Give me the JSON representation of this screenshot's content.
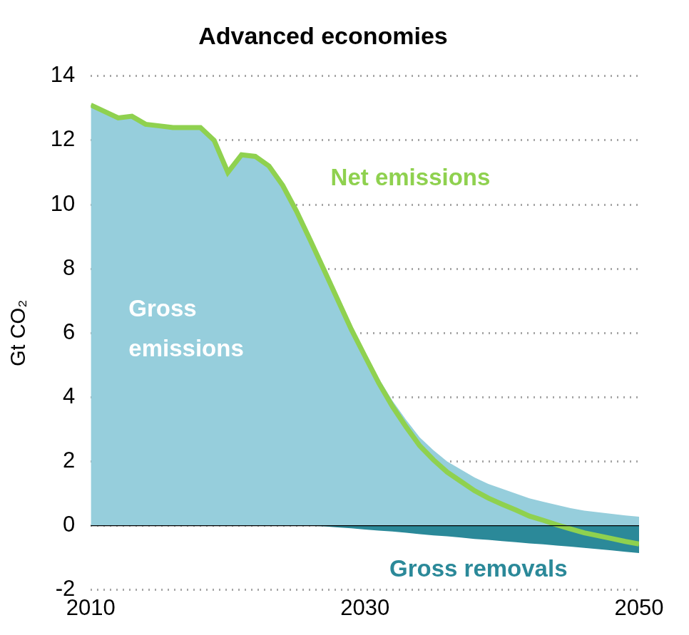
{
  "chart_data": {
    "type": "area",
    "title": "Advanced economies",
    "y_label": "Gt CO₂",
    "x": [
      2010,
      2011,
      2012,
      2013,
      2014,
      2015,
      2016,
      2017,
      2018,
      2019,
      2020,
      2021,
      2022,
      2023,
      2024,
      2025,
      2026,
      2027,
      2028,
      2029,
      2030,
      2031,
      2032,
      2033,
      2034,
      2035,
      2036,
      2037,
      2038,
      2039,
      2040,
      2041,
      2042,
      2043,
      2044,
      2045,
      2046,
      2047,
      2048,
      2049,
      2050
    ],
    "series": [
      {
        "name": "Gross emissions",
        "type": "area",
        "color": "#96cedc",
        "values": [
          13.1,
          12.9,
          12.7,
          12.75,
          12.5,
          12.45,
          12.4,
          12.4,
          12.4,
          12.0,
          11.0,
          11.55,
          11.5,
          11.2,
          10.6,
          9.8,
          8.9,
          8.0,
          7.1,
          6.2,
          5.4,
          4.6,
          3.9,
          3.3,
          2.75,
          2.35,
          2.0,
          1.75,
          1.5,
          1.3,
          1.15,
          1.0,
          0.85,
          0.75,
          0.65,
          0.55,
          0.47,
          0.42,
          0.37,
          0.32,
          0.28
        ]
      },
      {
        "name": "Gross removals",
        "type": "area",
        "color": "#2b8999",
        "values": [
          0,
          0,
          0,
          0,
          0,
          0,
          0,
          0,
          0,
          0,
          0,
          0,
          0,
          0,
          0,
          0,
          0,
          -0.02,
          -0.05,
          -0.08,
          -0.12,
          -0.15,
          -0.18,
          -0.22,
          -0.26,
          -0.3,
          -0.33,
          -0.37,
          -0.41,
          -0.44,
          -0.48,
          -0.51,
          -0.55,
          -0.58,
          -0.62,
          -0.65,
          -0.69,
          -0.73,
          -0.77,
          -0.81,
          -0.85
        ]
      },
      {
        "name": "Net emissions",
        "type": "line",
        "color": "#8fd14f",
        "values": [
          13.1,
          12.9,
          12.7,
          12.75,
          12.5,
          12.45,
          12.4,
          12.4,
          12.4,
          12.0,
          11.0,
          11.55,
          11.5,
          11.2,
          10.6,
          9.8,
          8.9,
          7.98,
          7.05,
          6.12,
          5.28,
          4.45,
          3.72,
          3.08,
          2.49,
          2.05,
          1.67,
          1.38,
          1.09,
          0.86,
          0.67,
          0.49,
          0.3,
          0.17,
          0.03,
          -0.1,
          -0.22,
          -0.31,
          -0.4,
          -0.49,
          -0.57
        ]
      }
    ],
    "xlim": [
      2010,
      2050
    ],
    "xticks": [
      2010,
      2030,
      2050
    ],
    "ylim": [
      -2,
      14
    ],
    "yticks": [
      -2,
      0,
      2,
      4,
      6,
      8,
      10,
      12,
      14
    ],
    "grid": true
  }
}
